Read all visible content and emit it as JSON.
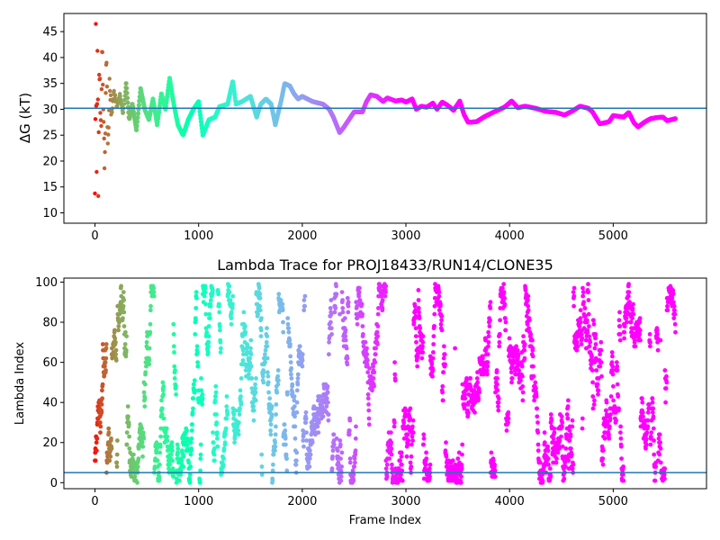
{
  "chart_data": [
    {
      "type": "scatter",
      "title": "",
      "xlabel": "",
      "ylabel": "ΔG (kT)",
      "xlim": [
        -300,
        5900
      ],
      "ylim": [
        8.0,
        48.5
      ],
      "xticks": [
        0,
        1000,
        2000,
        3000,
        4000,
        5000
      ],
      "yticks": [
        10,
        15,
        20,
        25,
        30,
        35,
        40,
        45
      ],
      "reference_line": 30.2,
      "reference_line_color": "#1f77b4",
      "colormap": "rainbow_r",
      "frame_max": 5600,
      "trace_knots": [
        [
          0,
          10.2
        ],
        [
          8,
          46
        ],
        [
          16,
          17.2
        ],
        [
          24,
          43
        ],
        [
          32,
          14
        ],
        [
          40,
          38
        ],
        [
          50,
          33
        ],
        [
          60,
          26
        ],
        [
          70,
          47
        ],
        [
          80,
          30
        ],
        [
          95,
          18
        ],
        [
          110,
          40
        ],
        [
          125,
          21
        ],
        [
          140,
          35
        ],
        [
          160,
          29
        ],
        [
          185,
          34
        ],
        [
          210,
          30
        ],
        [
          240,
          33
        ],
        [
          270,
          29
        ],
        [
          300,
          35
        ],
        [
          330,
          28
        ],
        [
          360,
          31
        ],
        [
          400,
          26
        ],
        [
          440,
          34
        ],
        [
          480,
          30
        ],
        [
          520,
          28
        ],
        [
          560,
          32
        ],
        [
          600,
          27
        ],
        [
          640,
          33
        ],
        [
          680,
          30
        ],
        [
          720,
          36
        ],
        [
          760,
          31
        ],
        [
          800,
          27
        ],
        [
          850,
          25
        ],
        [
          900,
          28
        ],
        [
          950,
          30
        ],
        [
          1000,
          31.5
        ],
        [
          1040,
          25
        ],
        [
          1100,
          28
        ],
        [
          1160,
          28.5
        ],
        [
          1200,
          30.5
        ],
        [
          1280,
          31
        ],
        [
          1330,
          35.5
        ],
        [
          1360,
          31
        ],
        [
          1420,
          31.5
        ],
        [
          1500,
          32.5
        ],
        [
          1560,
          28.5
        ],
        [
          1600,
          31
        ],
        [
          1650,
          32
        ],
        [
          1700,
          31
        ],
        [
          1740,
          27
        ],
        [
          1800,
          32
        ],
        [
          1830,
          35
        ],
        [
          1880,
          34.5
        ],
        [
          1920,
          33
        ],
        [
          1960,
          32
        ],
        [
          2000,
          32.5
        ],
        [
          2100,
          31.5
        ],
        [
          2200,
          31
        ],
        [
          2260,
          30
        ],
        [
          2300,
          28.5
        ],
        [
          2360,
          25.5
        ],
        [
          2400,
          26.5
        ],
        [
          2450,
          28
        ],
        [
          2500,
          29.5
        ],
        [
          2580,
          29.5
        ],
        [
          2620,
          31.5
        ],
        [
          2660,
          32.8
        ],
        [
          2720,
          32.5
        ],
        [
          2780,
          31.5
        ],
        [
          2820,
          32.2
        ],
        [
          2900,
          31.6
        ],
        [
          2960,
          31.8
        ],
        [
          3000,
          31.4
        ],
        [
          3060,
          32
        ],
        [
          3100,
          30
        ],
        [
          3150,
          30.6
        ],
        [
          3200,
          30.4
        ],
        [
          3260,
          31.2
        ],
        [
          3300,
          30
        ],
        [
          3350,
          31.4
        ],
        [
          3400,
          30.8
        ],
        [
          3460,
          29.8
        ],
        [
          3520,
          31.6
        ],
        [
          3560,
          29
        ],
        [
          3600,
          27.5
        ],
        [
          3680,
          27.6
        ],
        [
          3760,
          28.6
        ],
        [
          3850,
          29.5
        ],
        [
          3950,
          30.4
        ],
        [
          4020,
          31.6
        ],
        [
          4080,
          30.3
        ],
        [
          4150,
          30.6
        ],
        [
          4250,
          30.2
        ],
        [
          4350,
          29.6
        ],
        [
          4450,
          29.4
        ],
        [
          4530,
          28.9
        ],
        [
          4600,
          29.6
        ],
        [
          4680,
          30.6
        ],
        [
          4760,
          30.2
        ],
        [
          4800,
          29.5
        ],
        [
          4870,
          27.2
        ],
        [
          4960,
          27.6
        ],
        [
          5000,
          28.8
        ],
        [
          5100,
          28.5
        ],
        [
          5150,
          29.4
        ],
        [
          5200,
          27.4
        ],
        [
          5240,
          26.6
        ],
        [
          5300,
          27.5
        ],
        [
          5360,
          28.2
        ],
        [
          5420,
          28.4
        ],
        [
          5480,
          28.5
        ],
        [
          5520,
          27.8
        ],
        [
          5560,
          28
        ],
        [
          5600,
          28.2
        ]
      ]
    },
    {
      "type": "scatter",
      "title": "Lambda Trace for PROJ18433/RUN14/CLONE35",
      "xlabel": "Frame Index",
      "ylabel": "Lambda Index",
      "xlim": [
        -300,
        5900
      ],
      "ylim": [
        -3,
        102
      ],
      "xticks": [
        0,
        1000,
        2000,
        3000,
        4000,
        5000
      ],
      "yticks": [
        0,
        20,
        40,
        60,
        80,
        100
      ],
      "reference_line": 5,
      "reference_line_color": "#1f77b4",
      "colormap": "rainbow_r",
      "lambda_range": [
        0,
        99
      ],
      "frame_max": 5600
    }
  ]
}
